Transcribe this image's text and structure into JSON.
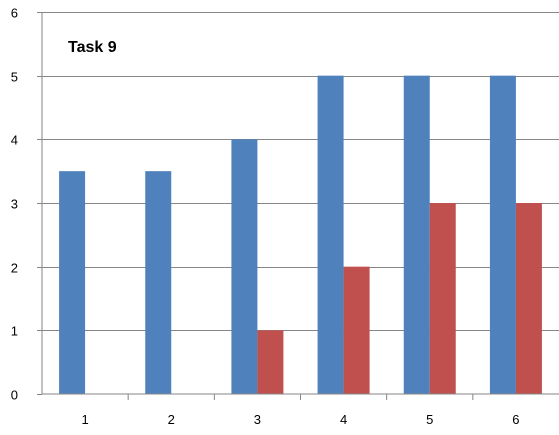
{
  "chart_data": {
    "type": "bar",
    "title": "Task 9",
    "xlabel": "",
    "ylabel": "",
    "categories": [
      "1",
      "2",
      "3",
      "4",
      "5",
      "6"
    ],
    "series": [
      {
        "values": [
          3.5,
          3.5,
          4,
          5,
          5,
          5
        ],
        "color": "#4F81BD"
      },
      {
        "values": [
          0,
          0,
          1,
          2,
          3,
          3
        ],
        "color": "#C0504D"
      }
    ],
    "ylim": [
      0,
      6
    ],
    "yticks": [
      "0",
      "1",
      "2",
      "3",
      "4",
      "5",
      "6"
    ],
    "grid": true,
    "legend": "none"
  }
}
